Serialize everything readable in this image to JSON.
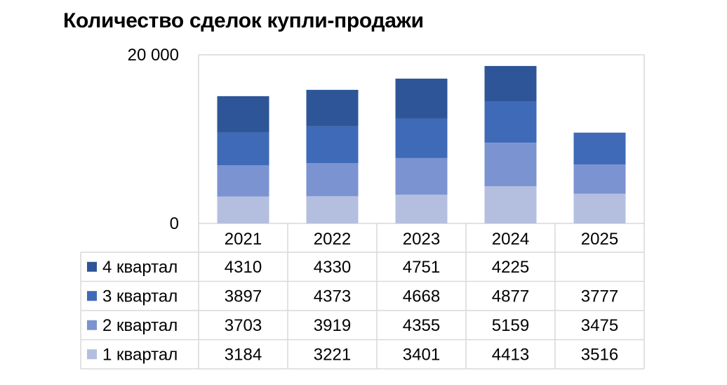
{
  "chart_data": {
    "type": "bar",
    "stacked": true,
    "title": "Количество сделок купли-продажи",
    "categories": [
      "2021",
      "2022",
      "2023",
      "2024",
      "2025"
    ],
    "series": [
      {
        "name": "1 квартал",
        "color": "#b4bfe0",
        "values": [
          3184,
          3221,
          3401,
          4413,
          3516
        ]
      },
      {
        "name": "2 квартал",
        "color": "#7b93d1",
        "values": [
          3703,
          3919,
          4355,
          5159,
          3475
        ]
      },
      {
        "name": "3 квартал",
        "color": "#3f6ab7",
        "values": [
          3897,
          4373,
          4668,
          4877,
          3777
        ]
      },
      {
        "name": "4 квартал",
        "color": "#2e5597",
        "values": [
          4310,
          4330,
          4751,
          4225,
          null
        ]
      }
    ],
    "ylim": [
      0,
      20000
    ],
    "yticks": [
      {
        "value": 0,
        "label": "0"
      },
      {
        "value": 20000,
        "label": "20 000"
      }
    ],
    "grid": false,
    "legend": "data-table"
  }
}
